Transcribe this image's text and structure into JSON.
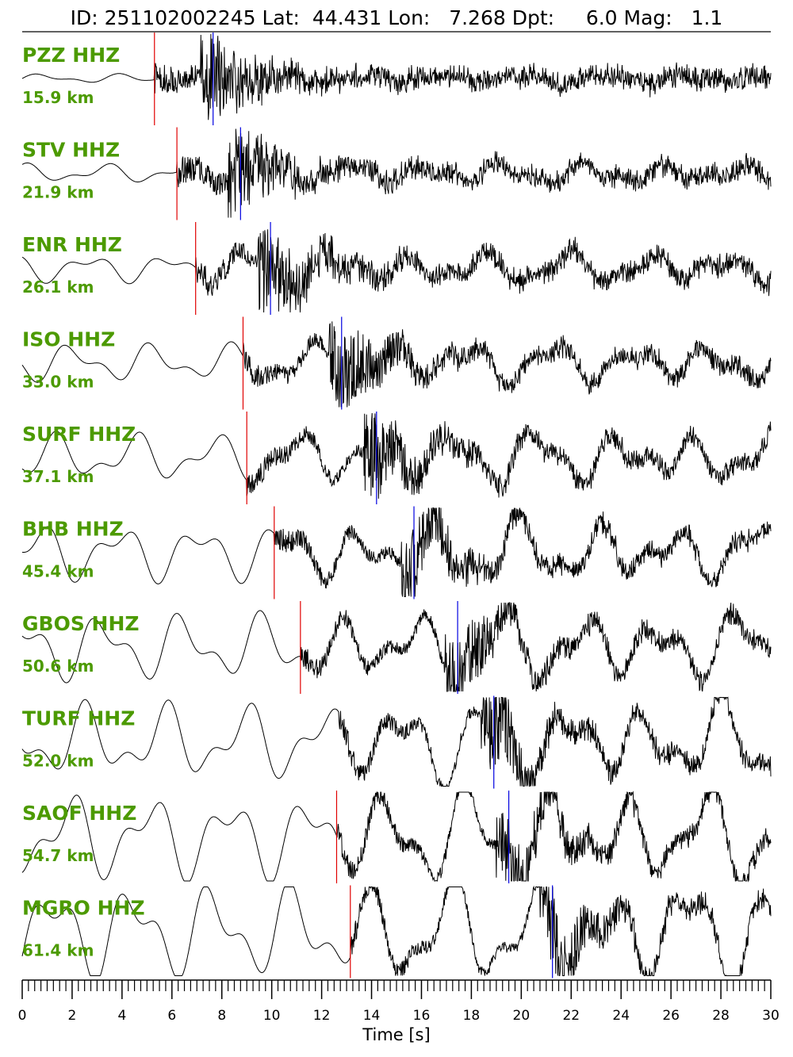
{
  "title": {
    "id_label": "ID:",
    "id": "251102002245",
    "lat_label": "Lat:",
    "lat": "44.431",
    "lon_label": "Lon:",
    "lon": "7.268",
    "depth_label": "Dpt:",
    "depth": "6.0",
    "mag_label": "Mag:",
    "mag": "1.1"
  },
  "colors": {
    "label": "#4c9a00",
    "p_pick": "#e00000",
    "s_pick": "#0000e0",
    "trace": "#000000"
  },
  "chart_data": {
    "type": "line",
    "chart_kind": "seismogram record section",
    "xlabel": "Time [s]",
    "xlim": [
      0,
      30
    ],
    "x_major_ticks": [
      0,
      2,
      4,
      6,
      8,
      10,
      12,
      14,
      16,
      18,
      20,
      22,
      24,
      26,
      28,
      30
    ],
    "x_minor_tick_step": 0.25,
    "grid": false,
    "traces": [
      {
        "station": "PZZ HHZ",
        "distance": "15.9 km",
        "p_time": 5.3,
        "s_time": 7.65
      },
      {
        "station": "STV HHZ",
        "distance": "21.9 km",
        "p_time": 6.2,
        "s_time": 8.75
      },
      {
        "station": "ENR HHZ",
        "distance": "26.1 km",
        "p_time": 6.95,
        "s_time": 9.95
      },
      {
        "station": "ISO HHZ",
        "distance": "33.0 km",
        "p_time": 8.85,
        "s_time": 12.8
      },
      {
        "station": "SURF HHZ",
        "distance": "37.1 km",
        "p_time": 9.0,
        "s_time": 14.2
      },
      {
        "station": "BHB HHZ",
        "distance": "45.4 km",
        "p_time": 10.1,
        "s_time": 15.7
      },
      {
        "station": "GBOS HHZ",
        "distance": "50.6 km",
        "p_time": 11.15,
        "s_time": 17.45
      },
      {
        "station": "TURF HHZ",
        "distance": "52.0 km",
        "p_time": null,
        "s_time": 18.9
      },
      {
        "station": "SAOF HHZ",
        "distance": "54.7 km",
        "p_time": 12.6,
        "s_time": 19.5
      },
      {
        "station": "MGRO HHZ",
        "distance": "61.4 km",
        "p_time": 13.15,
        "s_time": 21.25
      }
    ]
  }
}
